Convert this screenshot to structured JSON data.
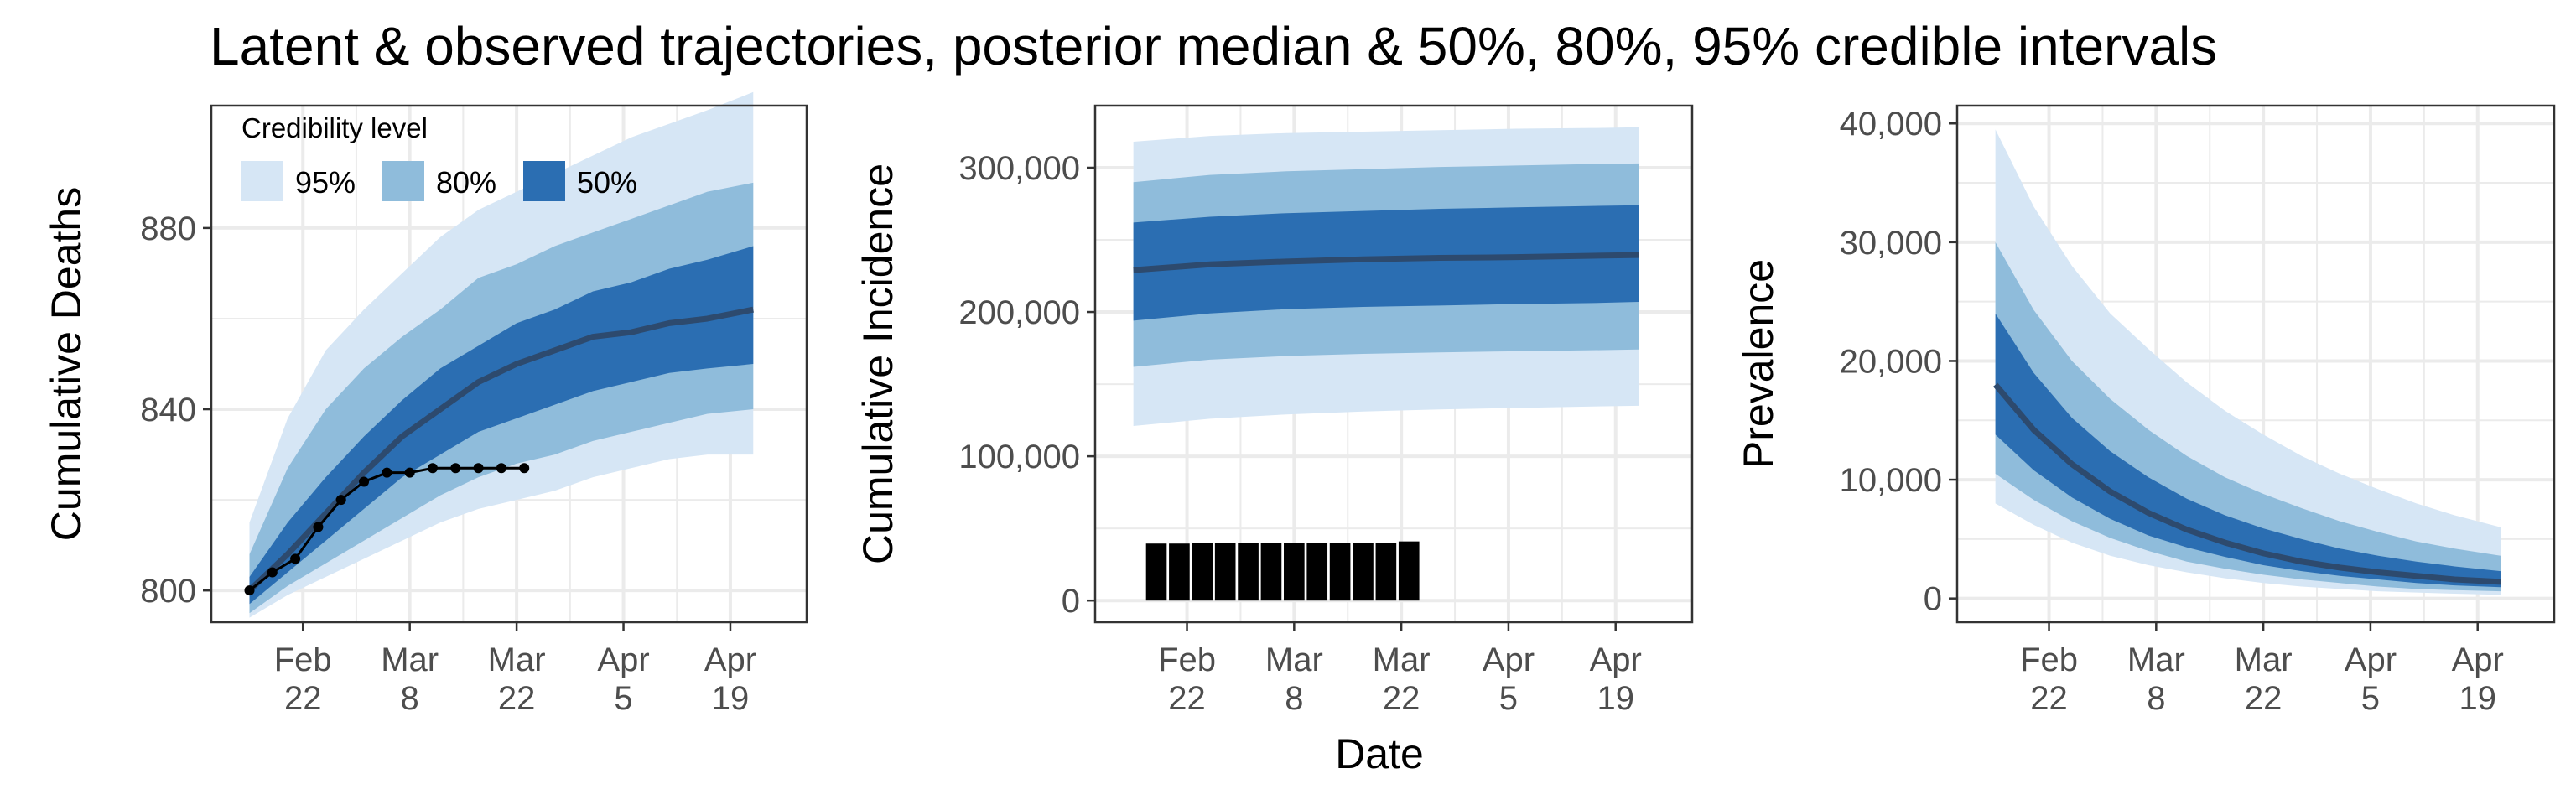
{
  "title": "Latent & observed trajectories, posterior median & 50%, 80%, 95% credible intervals",
  "legend": {
    "title": "Credibility level",
    "items": [
      {
        "label": "95%",
        "color": "#d6e6f5"
      },
      {
        "label": "80%",
        "color": "#8fbcdb"
      },
      {
        "label": "50%",
        "color": "#2b6eb2"
      }
    ]
  },
  "colors": {
    "median": "#2d4a6e",
    "observed": "#000000",
    "grid": "#ebebeb",
    "axis": "#333333"
  },
  "shared_xlabel": "Date",
  "chart_data": [
    {
      "type": "area",
      "ylabel": "Cumulative Deaths",
      "xlim": [
        -5,
        73
      ],
      "ylim": [
        793,
        907
      ],
      "x_ticks": [
        {
          "value": 7,
          "label": [
            "Feb",
            "22"
          ]
        },
        {
          "value": 21,
          "label": [
            "Mar",
            "8"
          ]
        },
        {
          "value": 35,
          "label": [
            "Mar",
            "22"
          ]
        },
        {
          "value": 49,
          "label": [
            "Apr",
            "5"
          ]
        },
        {
          "value": 63,
          "label": [
            "Apr",
            "19"
          ]
        }
      ],
      "y_ticks": [
        {
          "value": 800,
          "label": "800"
        },
        {
          "value": 840,
          "label": "840"
        },
        {
          "value": 880,
          "label": "880"
        }
      ],
      "x": [
        0,
        5,
        10,
        15,
        20,
        25,
        30,
        35,
        40,
        45,
        50,
        55,
        60,
        66
      ],
      "median": [
        800,
        808,
        817,
        826,
        834,
        840,
        846,
        850,
        853,
        856,
        857,
        859,
        860,
        862
      ],
      "bands": {
        "95": {
          "lower": [
            794,
            799,
            803,
            807,
            811,
            815,
            818,
            820,
            822,
            825,
            827,
            829,
            830,
            830
          ],
          "upper": [
            815,
            838,
            853,
            862,
            870,
            878,
            884,
            888,
            892,
            896,
            900,
            903,
            906,
            910
          ]
        },
        "80": {
          "lower": [
            795,
            801,
            806,
            811,
            816,
            821,
            825,
            828,
            830,
            833,
            835,
            837,
            839,
            840
          ],
          "upper": [
            808,
            827,
            840,
            849,
            856,
            862,
            869,
            872,
            876,
            879,
            882,
            885,
            888,
            890
          ]
        },
        "50": {
          "lower": [
            797,
            804,
            811,
            818,
            825,
            830,
            835,
            838,
            841,
            844,
            846,
            848,
            849,
            850
          ],
          "upper": [
            803,
            815,
            825,
            834,
            842,
            849,
            854,
            859,
            862,
            866,
            868,
            871,
            873,
            876
          ]
        }
      },
      "observed": {
        "x": [
          0,
          3,
          6,
          9,
          12,
          15,
          18,
          21,
          24,
          27,
          30,
          33,
          36
        ],
        "y": [
          800,
          804,
          807,
          814,
          820,
          824,
          826,
          826,
          827,
          827,
          827,
          827,
          827
        ]
      }
    },
    {
      "type": "area",
      "ylabel": "Cumulative Incidence",
      "xlim": [
        -5,
        73
      ],
      "ylim": [
        -15000,
        343000
      ],
      "x_ticks": [
        {
          "value": 7,
          "label": [
            "Feb",
            "22"
          ]
        },
        {
          "value": 21,
          "label": [
            "Mar",
            "8"
          ]
        },
        {
          "value": 35,
          "label": [
            "Mar",
            "22"
          ]
        },
        {
          "value": 49,
          "label": [
            "Apr",
            "5"
          ]
        },
        {
          "value": 63,
          "label": [
            "Apr",
            "19"
          ]
        }
      ],
      "y_ticks": [
        {
          "value": 0,
          "label": "0"
        },
        {
          "value": 100000,
          "label": "100,000"
        },
        {
          "value": 200000,
          "label": "200,000"
        },
        {
          "value": 300000,
          "label": "300,000"
        }
      ],
      "x": [
        0,
        10,
        20,
        30,
        40,
        50,
        60,
        66
      ],
      "median": [
        229000,
        233000,
        235000,
        236500,
        237500,
        238000,
        239000,
        239500
      ],
      "bands": {
        "95": {
          "lower": [
            121000,
            126000,
            129000,
            131000,
            132500,
            133500,
            134500,
            135000
          ],
          "upper": [
            318000,
            322000,
            324000,
            325000,
            326000,
            327000,
            327500,
            328000
          ]
        },
        "80": {
          "lower": [
            162000,
            167000,
            169500,
            171000,
            172000,
            172800,
            173500,
            174000
          ],
          "upper": [
            290000,
            295000,
            297500,
            299000,
            300500,
            301500,
            302500,
            303000
          ]
        },
        "50": {
          "lower": [
            194000,
            199000,
            202000,
            203500,
            204500,
            205500,
            206200,
            207000
          ],
          "upper": [
            262000,
            266000,
            268500,
            270000,
            271500,
            272500,
            273500,
            274000
          ]
        }
      },
      "observed_bars": {
        "x": [
          3,
          6,
          9,
          12,
          15,
          18,
          21,
          24,
          27,
          30,
          33,
          36
        ],
        "values": [
          39500,
          39500,
          40000,
          40000,
          40000,
          40000,
          40000,
          40000,
          40000,
          40000,
          40000,
          41000
        ]
      }
    },
    {
      "type": "area",
      "ylabel": "Prevalence",
      "xlim": [
        -5,
        73
      ],
      "ylim": [
        -2000,
        41500
      ],
      "x_ticks": [
        {
          "value": 7,
          "label": [
            "Feb",
            "22"
          ]
        },
        {
          "value": 21,
          "label": [
            "Mar",
            "8"
          ]
        },
        {
          "value": 35,
          "label": [
            "Mar",
            "22"
          ]
        },
        {
          "value": 49,
          "label": [
            "Apr",
            "5"
          ]
        },
        {
          "value": 63,
          "label": [
            "Apr",
            "19"
          ]
        }
      ],
      "y_ticks": [
        {
          "value": 0,
          "label": "0"
        },
        {
          "value": 10000,
          "label": "10,000"
        },
        {
          "value": 20000,
          "label": "20,000"
        },
        {
          "value": 30000,
          "label": "30,000"
        },
        {
          "value": 40000,
          "label": "40,000"
        }
      ],
      "x": [
        0,
        5,
        10,
        15,
        20,
        25,
        30,
        35,
        40,
        45,
        50,
        55,
        60,
        66
      ],
      "median": [
        18000,
        14200,
        11300,
        9000,
        7200,
        5800,
        4700,
        3800,
        3100,
        2600,
        2200,
        1900,
        1600,
        1400
      ],
      "bands": {
        "95": {
          "lower": [
            8000,
            6200,
            4700,
            3600,
            2800,
            2200,
            1700,
            1300,
            1000,
            800,
            600,
            500,
            400,
            300
          ],
          "upper": [
            39500,
            33000,
            28000,
            24000,
            21000,
            18200,
            15800,
            13800,
            12000,
            10500,
            9200,
            8000,
            7000,
            6000
          ]
        },
        "80": {
          "lower": [
            10500,
            8300,
            6500,
            5100,
            4000,
            3100,
            2500,
            2000,
            1600,
            1300,
            1000,
            800,
            700,
            600
          ],
          "upper": [
            30000,
            24300,
            20000,
            16800,
            14200,
            12000,
            10200,
            8800,
            7600,
            6500,
            5600,
            4800,
            4200,
            3600
          ]
        },
        "50": {
          "lower": [
            13800,
            10800,
            8500,
            6700,
            5300,
            4300,
            3500,
            2800,
            2300,
            1900,
            1600,
            1300,
            1100,
            950
          ],
          "upper": [
            24000,
            19000,
            15200,
            12400,
            10200,
            8400,
            7000,
            5900,
            5000,
            4200,
            3600,
            3100,
            2700,
            2300
          ]
        }
      }
    }
  ]
}
